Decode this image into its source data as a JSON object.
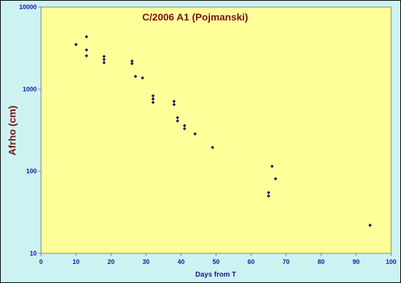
{
  "chart_data": {
    "type": "scatter",
    "title": "C/2006 A1 (Pojmanski)",
    "xlabel": "Days from T",
    "ylabel": "Afrho (cm)",
    "xlim": [
      0,
      100
    ],
    "ylim": [
      10,
      10000
    ],
    "yscale": "log",
    "xticks": [
      "0",
      "10",
      "20",
      "30",
      "40",
      "50",
      "60",
      "70",
      "80",
      "90",
      "100"
    ],
    "yticks": [
      "10",
      "100",
      "1000",
      "10000"
    ],
    "grid": false,
    "legend": "none",
    "colors": {
      "background": "#cdf2f2",
      "plot_area": "#ffff99",
      "marker": "#1a1a66",
      "title": "#7a1010",
      "axis_text": "#1a1aa0"
    },
    "points": [
      {
        "x": 10,
        "y": 3500
      },
      {
        "x": 13,
        "y": 4350
      },
      {
        "x": 13,
        "y": 3000
      },
      {
        "x": 13,
        "y": 2550
      },
      {
        "x": 18,
        "y": 2500
      },
      {
        "x": 18,
        "y": 2300
      },
      {
        "x": 18,
        "y": 2100
      },
      {
        "x": 26,
        "y": 2200
      },
      {
        "x": 26,
        "y": 2050
      },
      {
        "x": 27,
        "y": 1430
      },
      {
        "x": 29,
        "y": 1370
      },
      {
        "x": 32,
        "y": 830
      },
      {
        "x": 32,
        "y": 760
      },
      {
        "x": 32,
        "y": 690
      },
      {
        "x": 38,
        "y": 710
      },
      {
        "x": 38,
        "y": 650
      },
      {
        "x": 39,
        "y": 450
      },
      {
        "x": 39,
        "y": 410
      },
      {
        "x": 41,
        "y": 360
      },
      {
        "x": 41,
        "y": 330
      },
      {
        "x": 44,
        "y": 285
      },
      {
        "x": 49,
        "y": 195
      },
      {
        "x": 65,
        "y": 55
      },
      {
        "x": 65,
        "y": 50
      },
      {
        "x": 66,
        "y": 115
      },
      {
        "x": 67,
        "y": 81
      },
      {
        "x": 94,
        "y": 22
      }
    ]
  }
}
